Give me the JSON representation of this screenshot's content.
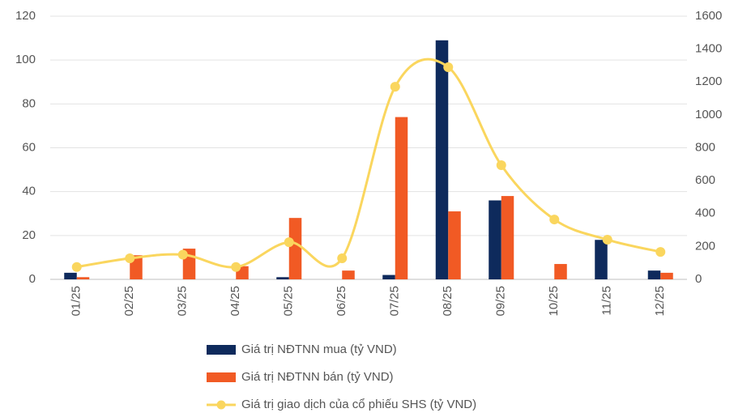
{
  "chart_data": {
    "type": "bar",
    "categories": [
      "01/25",
      "02/25",
      "03/25",
      "04/25",
      "05/25",
      "06/25",
      "07/25",
      "08/25",
      "09/25",
      "10/25",
      "11/25",
      "12/25"
    ],
    "series": [
      {
        "name": "Giá trị NĐTNN mua (tỷ VND)",
        "type": "bar",
        "color": "#0e2a5c",
        "values": [
          3,
          0,
          0,
          0,
          1,
          0,
          2,
          109,
          36,
          0,
          18,
          4
        ]
      },
      {
        "name": "Giá trị NĐTNN bán (tỷ VND)",
        "type": "bar",
        "color": "#f15a24",
        "values": [
          1,
          11,
          14,
          6,
          28,
          4,
          74,
          31,
          38,
          7,
          0,
          3
        ]
      },
      {
        "name": "Giá trị giao dịch của cổ phiếu SHS  (tỷ VND)",
        "type": "line",
        "axis": "y2",
        "color": "#fad65e",
        "values": [
          75,
          128,
          150,
          75,
          226,
          128,
          1171,
          1290,
          694,
          364,
          241,
          167
        ]
      }
    ],
    "ylim": [
      0,
      120
    ],
    "yticks": [
      0,
      20,
      40,
      60,
      80,
      100,
      120
    ],
    "y2lim": [
      0,
      1600
    ],
    "y2ticks": [
      0,
      200,
      400,
      600,
      800,
      1000,
      1200,
      1400,
      1600
    ],
    "grid": true,
    "legend": "bottom"
  }
}
